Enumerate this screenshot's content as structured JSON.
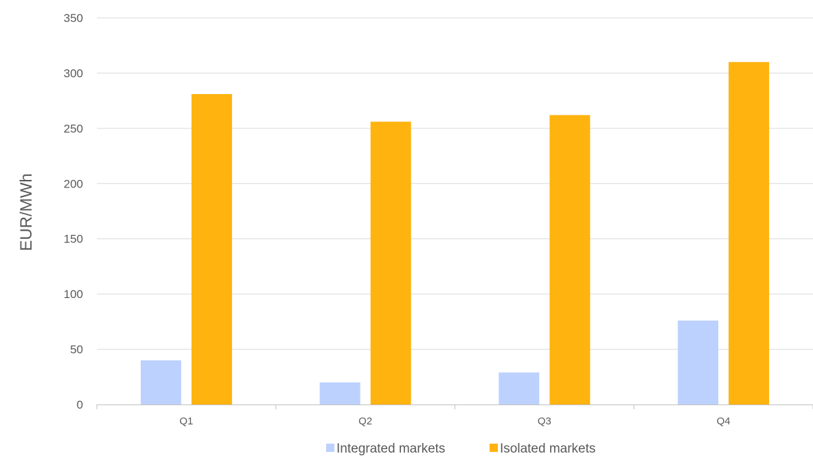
{
  "chart_data": {
    "type": "bar",
    "categories": [
      "Q1",
      "Q2",
      "Q3",
      "Q4"
    ],
    "series": [
      {
        "name": "Integrated markets",
        "values": [
          40,
          20,
          29,
          76
        ],
        "color": "#bdd1ff"
      },
      {
        "name": "Isolated markets",
        "values": [
          281,
          256,
          262,
          310
        ],
        "color": "#ffb30f"
      }
    ],
    "title": "",
    "xlabel": "",
    "ylabel": "EUR/MWh",
    "ylim": [
      0,
      350
    ],
    "yticks": [
      "0",
      "50",
      "100",
      "150",
      "200",
      "250",
      "300",
      "350"
    ],
    "grid": true,
    "legend_position": "bottom-center",
    "colors": {
      "grid": "#d9d9d9",
      "axis": "#bfbfbf",
      "text": "#595959"
    }
  }
}
